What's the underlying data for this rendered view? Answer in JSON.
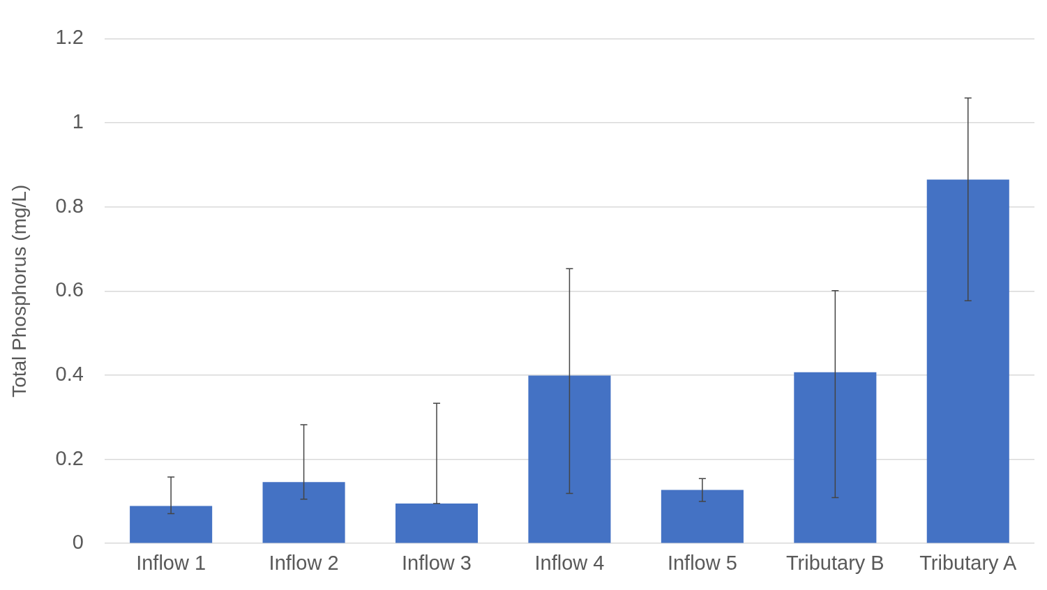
{
  "chart_data": {
    "type": "bar",
    "ylabel": "Total Phosphorus (mg/L)",
    "categories": [
      "Inflow 1",
      "Inflow 2",
      "Inflow 3",
      "Inflow 4",
      "Inflow 5",
      "Tributary B",
      "Tributary A"
    ],
    "values": [
      0.089,
      0.146,
      0.095,
      0.399,
      0.127,
      0.407,
      0.865
    ],
    "errors": [
      [
        0.071,
        0.158
      ],
      [
        0.105,
        0.282
      ],
      [
        0.095,
        0.333
      ],
      [
        0.119,
        0.653
      ],
      [
        0.1,
        0.154
      ],
      [
        0.109,
        0.601
      ],
      [
        0.577,
        1.059
      ]
    ],
    "color": "#4472c4",
    "ylim": [
      0,
      1.2
    ],
    "yticks": [
      0,
      0.2,
      0.4,
      0.6,
      0.8,
      1,
      1.2
    ],
    "grid": "y",
    "legend": false
  }
}
